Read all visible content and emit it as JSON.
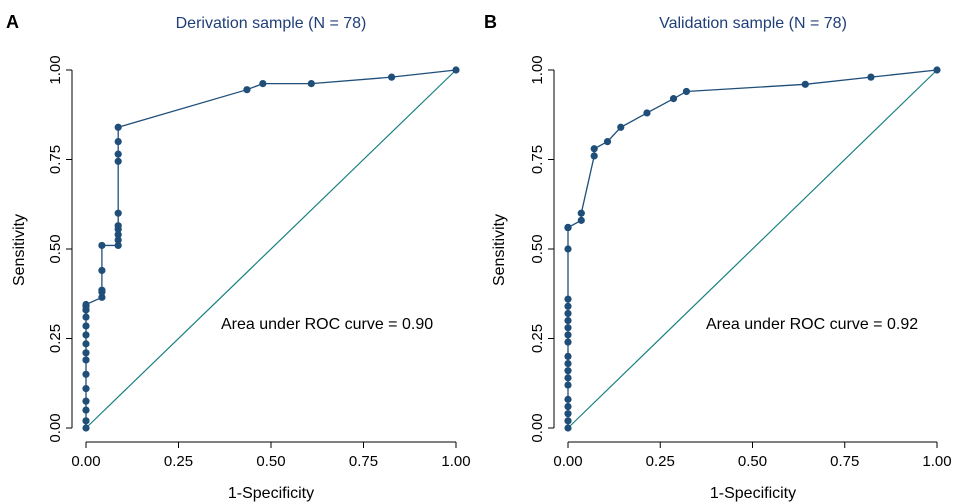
{
  "colors": {
    "curve": "#1f4e79",
    "diagonal": "#1a8080",
    "title": "#1f3f78",
    "axis": "#000000",
    "text": "#000000"
  },
  "chart_data": [
    {
      "panel_label": "A",
      "type": "line",
      "title": "Derivation sample (N = 78)",
      "xlabel": "1-Specificity",
      "ylabel": "Sensitivity",
      "xlim": [
        0,
        1
      ],
      "ylim": [
        0,
        1
      ],
      "ticks": [
        0,
        0.25,
        0.5,
        0.75,
        1
      ],
      "tick_labels": [
        "0.00",
        "0.25",
        "0.50",
        "0.75",
        "1.00"
      ],
      "annotation": "Area under ROC curve = 0.90",
      "grid": false,
      "reference_line": {
        "x": [
          0,
          1
        ],
        "y": [
          0,
          1
        ]
      },
      "series": [
        {
          "x": [
            0,
            0,
            0,
            0,
            0,
            0,
            0,
            0,
            0,
            0,
            0,
            0,
            0,
            0,
            0,
            0,
            0.043,
            0.043,
            0.043,
            0.043,
            0.043,
            0.087,
            0.087,
            0.087,
            0.087,
            0.087,
            0.087,
            0.087,
            0.087,
            0.087,
            0.087,
            0.435,
            0.478,
            0.609,
            0.826,
            1.0
          ],
          "y": [
            0,
            0.02,
            0.05,
            0.075,
            0.11,
            0.15,
            0.19,
            0.21,
            0.235,
            0.26,
            0.285,
            0.31,
            0.33,
            0.33,
            0.34,
            0.345,
            0.365,
            0.38,
            0.385,
            0.44,
            0.51,
            0.51,
            0.525,
            0.54,
            0.555,
            0.565,
            0.6,
            0.745,
            0.765,
            0.8,
            0.84,
            0.945,
            0.962,
            0.962,
            0.98,
            1.0
          ]
        }
      ]
    },
    {
      "panel_label": "B",
      "type": "line",
      "title": "Validation sample (N = 78)",
      "xlabel": "1-Specificity",
      "ylabel": "Sensitivity",
      "xlim": [
        0,
        1
      ],
      "ylim": [
        0,
        1
      ],
      "ticks": [
        0,
        0.25,
        0.5,
        0.75,
        1
      ],
      "tick_labels": [
        "0.00",
        "0.25",
        "0.50",
        "0.75",
        "1.00"
      ],
      "annotation": "Area under ROC curve = 0.92",
      "grid": false,
      "reference_line": {
        "x": [
          0,
          1
        ],
        "y": [
          0,
          1
        ]
      },
      "series": [
        {
          "x": [
            0,
            0,
            0,
            0,
            0,
            0,
            0,
            0,
            0,
            0,
            0,
            0,
            0,
            0,
            0,
            0,
            0,
            0,
            0,
            0,
            0,
            0,
            0.036,
            0.036,
            0.071,
            0.071,
            0.107,
            0.143,
            0.214,
            0.286,
            0.321,
            0.643,
            0.821,
            1.0
          ],
          "y": [
            0,
            0.02,
            0.04,
            0.06,
            0.08,
            0.12,
            0.14,
            0.16,
            0.18,
            0.2,
            0.24,
            0.26,
            0.28,
            0.3,
            0.32,
            0.34,
            0.36,
            0.5,
            0.56,
            0.56,
            0.56,
            0.56,
            0.58,
            0.6,
            0.76,
            0.78,
            0.8,
            0.84,
            0.88,
            0.92,
            0.94,
            0.96,
            0.98,
            1.0
          ]
        }
      ]
    }
  ]
}
